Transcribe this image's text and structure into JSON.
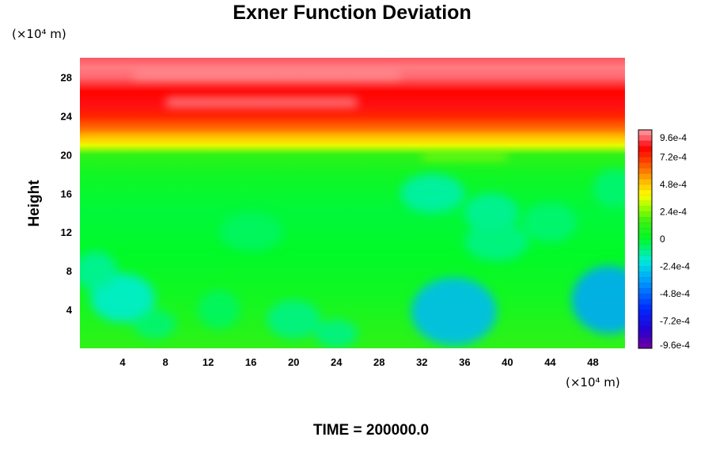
{
  "chart_data": {
    "type": "heatmap",
    "title": "Exner Function Deviation",
    "ylabel": "Height",
    "xlabel": "",
    "x_unit": "(×10⁴ m)",
    "y_unit": "(×10⁴ m)",
    "xlim": [
      0,
      51
    ],
    "ylim": [
      0,
      30
    ],
    "x_ticks": [
      4,
      8,
      12,
      16,
      20,
      24,
      28,
      32,
      36,
      40,
      44,
      48
    ],
    "y_ticks": [
      4,
      8,
      12,
      16,
      20,
      24,
      28
    ],
    "x_tick_labels": [
      "4",
      "8",
      "12",
      "16",
      "20",
      "24",
      "28",
      "32",
      "36",
      "40",
      "44",
      "48"
    ],
    "y_tick_labels": [
      "4",
      "8",
      "12",
      "16",
      "20",
      "24",
      "28"
    ],
    "grid": false,
    "colorbar": {
      "placement": "right",
      "range": [
        -0.00096,
        0.00096
      ],
      "levels": 40,
      "tick_values": [
        0.00096,
        0.00072,
        0.00048,
        0.00024,
        0,
        -0.00024,
        -0.00048,
        -0.00072,
        -0.00096
      ],
      "tick_labels": [
        "9.6e-4",
        "7.2e-4",
        "4.8e-4",
        "2.4e-4",
        "0",
        "-2.4e-4",
        "-4.8e-4",
        "-7.2e-4",
        "-9.6e-4"
      ]
    },
    "field_profile_by_height": [
      {
        "height": 0,
        "value": 0.00012
      },
      {
        "height": 5,
        "value": 5e-05
      },
      {
        "height": 10,
        "value": 0.0
      },
      {
        "height": 14,
        "value": -2e-05
      },
      {
        "height": 18,
        "value": 4e-05
      },
      {
        "height": 20,
        "value": 0.00012
      },
      {
        "height": 21,
        "value": 0.00036
      },
      {
        "height": 21.6,
        "value": 0.00048
      },
      {
        "height": 22.5,
        "value": 0.0006
      },
      {
        "height": 24,
        "value": 0.00074
      },
      {
        "height": 25,
        "value": 0.00082
      },
      {
        "height": 26.5,
        "value": 0.0008
      },
      {
        "height": 28,
        "value": 0.0009
      },
      {
        "height": 29,
        "value": 0.00092
      },
      {
        "height": 30,
        "value": 0.00088
      }
    ],
    "anomalies": [
      {
        "x": 35,
        "y": 3.8,
        "value": -0.0003,
        "rx": 4,
        "ry": 3.5
      },
      {
        "x": 49.5,
        "y": 5,
        "value": -0.00034,
        "rx": 3.5,
        "ry": 3.5
      },
      {
        "x": 4,
        "y": 5.2,
        "value": -0.00018,
        "rx": 3,
        "ry": 2.5
      },
      {
        "x": 1.5,
        "y": 8,
        "value": -0.00012,
        "rx": 2,
        "ry": 2
      },
      {
        "x": 20,
        "y": 3,
        "value": -0.0001,
        "rx": 2.5,
        "ry": 2
      },
      {
        "x": 24,
        "y": 1.5,
        "value": -0.0001,
        "rx": 2,
        "ry": 1.5
      },
      {
        "x": 33,
        "y": 16,
        "value": -0.00014,
        "rx": 3,
        "ry": 2
      },
      {
        "x": 38.5,
        "y": 14,
        "value": -0.00012,
        "rx": 2.5,
        "ry": 2
      },
      {
        "x": 39,
        "y": 11,
        "value": -0.0001,
        "rx": 3,
        "ry": 2
      },
      {
        "x": 44,
        "y": 13,
        "value": -8e-05,
        "rx": 2.5,
        "ry": 2
      },
      {
        "x": 50,
        "y": 16.5,
        "value": -8e-05,
        "rx": 2,
        "ry": 2
      },
      {
        "x": 7,
        "y": 2.5,
        "value": -8e-05,
        "rx": 2,
        "ry": 1.5
      },
      {
        "x": 13,
        "y": 4,
        "value": -6e-05,
        "rx": 2,
        "ry": 2
      },
      {
        "x": 16,
        "y": 12,
        "value": -6e-05,
        "rx": 3,
        "ry": 2
      }
    ],
    "bands": [
      {
        "y": 25.4,
        "x_start": 8,
        "x_end": 26,
        "value": 0.00095,
        "thickness": 0.9
      },
      {
        "y": 28.2,
        "x_start": 5,
        "x_end": 30,
        "value": 0.00096,
        "thickness": 0.6
      },
      {
        "y": 21.6,
        "x_start": 0,
        "x_end": 51,
        "value": 0.00045,
        "thickness": 0.5
      },
      {
        "y": 19.8,
        "x_start": 32,
        "x_end": 40,
        "value": 0.0003,
        "thickness": 0.5
      }
    ]
  },
  "footer": {
    "time_label": "TIME = 200000.0"
  }
}
